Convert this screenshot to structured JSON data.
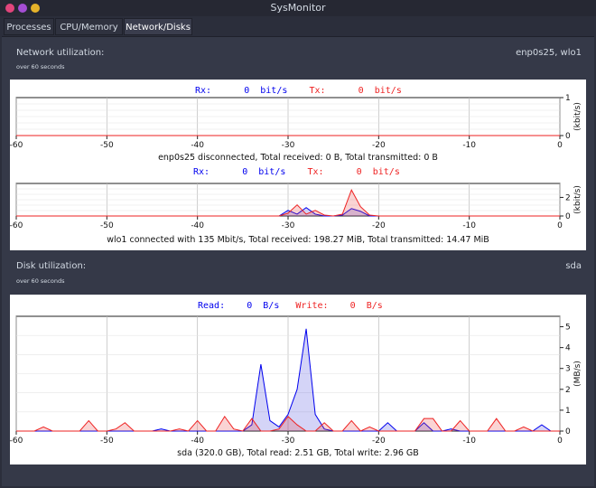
{
  "window": {
    "title": "SysMonitor"
  },
  "tabs": [
    {
      "label": "Processes",
      "active": false
    },
    {
      "label": "CPU/Memory",
      "active": false
    },
    {
      "label": "Network/Disks",
      "active": true
    }
  ],
  "network": {
    "title": "Network utilization:",
    "subtitle": "over 60 seconds",
    "interfaces_label": "enp0s25, wlo1",
    "rx_label": "Rx:",
    "rx_value": "0",
    "rx_unit": "bit/s",
    "tx_label": "Tx:",
    "tx_value": "0",
    "tx_unit": "bit/s",
    "enp_caption": "enp0s25 disconnected, Total received: 0 B, Total transmitted: 0 B",
    "wlo_caption": "wlo1 connected with 135 Mbit/s, Total received: 198.27 MiB, Total transmitted: 14.47 MiB"
  },
  "disk": {
    "title": "Disk utilization:",
    "subtitle": "over 60 seconds",
    "device_label": "sda",
    "read_label": "Read:",
    "read_value": "0",
    "read_unit": "B/s",
    "write_label": "Write:",
    "write_value": "0",
    "write_unit": "B/s",
    "caption": "sda (320.0 GB), Total read: 2.51 GB, Total write: 2.96 GB"
  },
  "colors": {
    "rx": "#0000ee",
    "tx": "#ee2222",
    "read_fill": "#c8c8f0",
    "write_fill": "#f5c8c8"
  },
  "chart_data": [
    {
      "type": "area",
      "title": "enp0s25",
      "ylabel": "(kbit/s)",
      "xlim": [
        -60,
        0
      ],
      "ylim": [
        0,
        1
      ],
      "x_ticks": [
        -60,
        -50,
        -40,
        -30,
        -20,
        -10,
        0
      ],
      "y_ticks": [
        0,
        1
      ],
      "series": [
        {
          "name": "Rx",
          "color": "#0000ee",
          "x": [
            -60,
            0
          ],
          "y": [
            0,
            0
          ]
        },
        {
          "name": "Tx",
          "color": "#ee2222",
          "x": [
            -60,
            0
          ],
          "y": [
            0,
            0
          ]
        }
      ]
    },
    {
      "type": "area",
      "title": "wlo1",
      "ylabel": "(kbit/s)",
      "xlim": [
        -60,
        0
      ],
      "ylim": [
        0,
        3.5
      ],
      "x_ticks": [
        -60,
        -50,
        -40,
        -30,
        -20,
        -10,
        0
      ],
      "y_ticks": [
        0,
        2
      ],
      "series": [
        {
          "name": "Rx",
          "color": "#0000ee",
          "x": [
            -60,
            -31,
            -30,
            -29,
            -28,
            -27,
            -26,
            -25,
            -24,
            -23,
            -22,
            -21,
            -20,
            0
          ],
          "y": [
            0,
            0,
            0.6,
            0.2,
            0.9,
            0.2,
            0,
            0,
            0.1,
            0.8,
            0.5,
            0,
            0,
            0
          ]
        },
        {
          "name": "Tx",
          "color": "#ee2222",
          "x": [
            -60,
            -31,
            -30,
            -29,
            -28,
            -27,
            -26,
            -25,
            -24,
            -23,
            -22,
            -21,
            -20,
            0
          ],
          "y": [
            0,
            0,
            0.3,
            1.2,
            0.2,
            0.6,
            0.1,
            0,
            0.2,
            2.8,
            1.0,
            0.1,
            0,
            0
          ]
        }
      ]
    },
    {
      "type": "area",
      "title": "sda",
      "ylabel": "(MB/s)",
      "xlim": [
        -60,
        0
      ],
      "ylim": [
        0,
        5.5
      ],
      "x_ticks": [
        -60,
        -50,
        -40,
        -30,
        -20,
        -10,
        0
      ],
      "y_ticks": [
        0,
        1,
        2,
        3,
        4,
        5
      ],
      "series": [
        {
          "name": "Read",
          "color": "#0000ee",
          "x": [
            -60,
            -45,
            -44,
            -43,
            -35,
            -34,
            -33,
            -32,
            -31,
            -30,
            -29,
            -28,
            -27,
            -26,
            -25,
            -24,
            -23,
            -22,
            -21,
            -20,
            -19,
            -18,
            -17,
            -16,
            -15,
            -14,
            -13,
            -12,
            -11,
            -10,
            -9,
            -8,
            -7,
            -6,
            -5,
            -4,
            -3,
            -2,
            -1,
            0
          ],
          "y": [
            0,
            0,
            0.1,
            0,
            0,
            0.3,
            3.2,
            0.5,
            0.2,
            0.8,
            2.0,
            4.9,
            0.8,
            0.1,
            0,
            0,
            0,
            0,
            0,
            0,
            0.4,
            0,
            0,
            0,
            0.4,
            0,
            0,
            0.1,
            0,
            0,
            0,
            0,
            0,
            0,
            0,
            0,
            0,
            0.3,
            0,
            0
          ]
        },
        {
          "name": "Write",
          "color": "#ee2222",
          "x": [
            -60,
            -58,
            -57,
            -56,
            -55,
            -54,
            -53,
            -52,
            -51,
            -50,
            -49,
            -48,
            -47,
            -46,
            -45,
            -44,
            -43,
            -42,
            -41,
            -40,
            -39,
            -38,
            -37,
            -36,
            -35,
            -34,
            -33,
            -32,
            -31,
            -30,
            -29,
            -28,
            -27,
            -26,
            -25,
            -24,
            -23,
            -22,
            -21,
            -20,
            -19,
            -18,
            -17,
            -16,
            -15,
            -14,
            -13,
            -12,
            -11,
            -10,
            -9,
            -8,
            -7,
            -6,
            -5,
            -4,
            -3,
            -2,
            -1,
            0
          ],
          "y": [
            0,
            0,
            0.2,
            0,
            0,
            0,
            0,
            0.5,
            0,
            0,
            0.1,
            0.4,
            0,
            0,
            0,
            0,
            0,
            0.1,
            0,
            0.5,
            0,
            0,
            0.7,
            0.1,
            0,
            0.6,
            0,
            0,
            0.1,
            0.7,
            0.3,
            0,
            0,
            0.4,
            0,
            0,
            0.5,
            0,
            0.2,
            0,
            0,
            0,
            0,
            0,
            0.6,
            0.6,
            0,
            0,
            0.5,
            0,
            0,
            0,
            0.6,
            0,
            0,
            0.2,
            0,
            0,
            0,
            0
          ]
        }
      ]
    }
  ]
}
